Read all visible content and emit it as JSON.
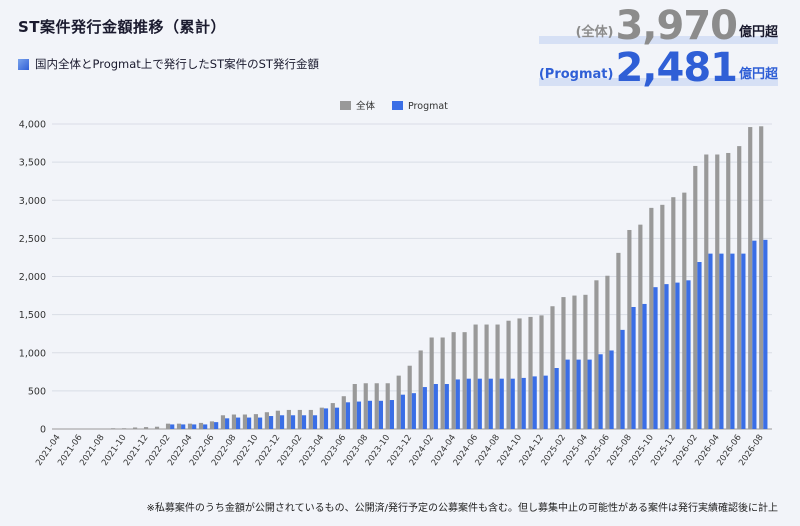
{
  "header": {
    "title": "ST案件発行金額推移（累計）",
    "subtitle": "国内全体とProgmat上で発行したST案件のST発行金額"
  },
  "totals": {
    "all_prefix": "(全体)",
    "all_value": "3,970",
    "all_suffix": "億円超",
    "pg_prefix": "(Progmat)",
    "pg_value": "2,481",
    "pg_suffix": "億円超"
  },
  "footnote": "※私募案件のうち金額が公開されているもの、公開済/発行予定の公募案件も含む。但し募集中止の可能性がある案件は発行実績確認後に計上",
  "colors": {
    "all": "#999999",
    "progmat": "#3a6ee6",
    "background": "#f2f4f9"
  },
  "chart_data": {
    "type": "bar",
    "title": "",
    "xlabel": "",
    "ylabel": "",
    "ylim": [
      0,
      4000
    ],
    "yticks": [
      0,
      500,
      1000,
      1500,
      2000,
      2500,
      3000,
      3500,
      4000
    ],
    "grid": true,
    "legend_position": "top-center",
    "categories": [
      "2021-04",
      "2021-05",
      "2021-06",
      "2021-07",
      "2021-08",
      "2021-09",
      "2021-10",
      "2021-11",
      "2021-12",
      "2022-01",
      "2022-02",
      "2022-03",
      "2022-04",
      "2022-05",
      "2022-06",
      "2022-07",
      "2022-08",
      "2022-09",
      "2022-10",
      "2022-11",
      "2022-12",
      "2023-01",
      "2023-02",
      "2023-03",
      "2023-04",
      "2023-05",
      "2023-06",
      "2023-07",
      "2023-08",
      "2023-09",
      "2023-10",
      "2023-11",
      "2023-12",
      "2024-01",
      "2024-02",
      "2024-03",
      "2024-04",
      "2024-05",
      "2024-06",
      "2024-07",
      "2024-08",
      "2024-09",
      "2024-10",
      "2024-11",
      "2024-12",
      "2025-01",
      "2025-02",
      "2025-03",
      "2025-04",
      "2025-05",
      "2025-06",
      "2025-07",
      "2025-08",
      "2025-09",
      "2025-10",
      "2025-11",
      "2025-12",
      "2026-01",
      "2026-02",
      "2026-03",
      "2026-04",
      "2026-05",
      "2026-06",
      "2026-07",
      "2026-08"
    ],
    "xtick_labels": [
      "2021-04",
      "2021-06",
      "2021-08",
      "2021-10",
      "2021-12",
      "2022-02",
      "2022-04",
      "2022-06",
      "2022-08",
      "2022-10",
      "2022-12",
      "2023-02",
      "2023-04",
      "2023-06",
      "2023-08",
      "2023-10",
      "2023-12",
      "2024-02",
      "2024-04",
      "2024-06",
      "2024-08",
      "2024-10",
      "2024-12",
      "2025-02",
      "2025-04",
      "2025-06",
      "2025-08",
      "2025-10",
      "2025-12",
      "2026-02",
      "2026-04",
      "2026-06",
      "2026-08"
    ],
    "series": [
      {
        "name": "全体",
        "values": [
          0,
          0,
          0,
          5,
          5,
          10,
          10,
          20,
          25,
          30,
          70,
          70,
          70,
          80,
          100,
          180,
          190,
          190,
          195,
          220,
          240,
          250,
          250,
          250,
          280,
          340,
          430,
          590,
          600,
          600,
          600,
          700,
          830,
          1030,
          1200,
          1200,
          1270,
          1270,
          1370,
          1370,
          1370,
          1420,
          1450,
          1470,
          1490,
          1610,
          1730,
          1750,
          1760,
          1950,
          2010,
          2310,
          2610,
          2680,
          2900,
          2940,
          3040,
          3100,
          3450,
          3600,
          3600,
          3620,
          3710,
          3960,
          3970
        ]
      },
      {
        "name": "Progmat",
        "values": [
          0,
          0,
          0,
          0,
          0,
          0,
          0,
          0,
          0,
          0,
          60,
          60,
          60,
          60,
          90,
          140,
          150,
          150,
          150,
          170,
          180,
          180,
          180,
          180,
          270,
          280,
          350,
          360,
          370,
          370,
          380,
          450,
          470,
          550,
          590,
          590,
          650,
          660,
          660,
          660,
          660,
          660,
          670,
          690,
          700,
          800,
          910,
          910,
          910,
          980,
          1030,
          1300,
          1600,
          1640,
          1860,
          1900,
          1920,
          1950,
          2190,
          2300,
          2300,
          2300,
          2300,
          2470,
          2481
        ]
      }
    ]
  }
}
